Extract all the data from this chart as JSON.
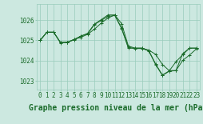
{
  "bg_color": "#cce8e0",
  "grid_color": "#99ccbb",
  "line_color": "#1a6b2a",
  "xlabel": "Graphe pression niveau de la mer (hPa)",
  "tick_fontsize": 5.5,
  "xlabel_fontsize": 7,
  "xlim": [
    -0.5,
    23.5
  ],
  "ylim": [
    1022.6,
    1026.8
  ],
  "yticks": [
    1023,
    1024,
    1025,
    1026
  ],
  "xticks": [
    0,
    1,
    2,
    3,
    4,
    5,
    6,
    7,
    8,
    9,
    10,
    11,
    12,
    13,
    14,
    15,
    16,
    17,
    18,
    19,
    20,
    21,
    22,
    23
  ],
  "series": {
    "s1_x": [
      0,
      1,
      2,
      3,
      4,
      5,
      6,
      7,
      8,
      9,
      10,
      11,
      12,
      13,
      14,
      15,
      16,
      17,
      18,
      19,
      20,
      21,
      22,
      23
    ],
    "s1_y": [
      1025.0,
      1025.4,
      1025.4,
      1024.9,
      1024.9,
      1025.05,
      1025.15,
      1025.3,
      1025.55,
      1025.85,
      1026.1,
      1026.25,
      1025.6,
      1024.65,
      1024.6,
      1024.6,
      1024.5,
      1023.85,
      1023.3,
      1023.5,
      1023.95,
      1024.3,
      1024.62,
      1024.62
    ],
    "s2_x": [
      0,
      1,
      2,
      3,
      4,
      5,
      6,
      7,
      8,
      9,
      10,
      11,
      12,
      13,
      14,
      15,
      16,
      17,
      18,
      19,
      20,
      21,
      22,
      23
    ],
    "s2_y": [
      1025.0,
      1025.4,
      1025.4,
      1024.9,
      1024.9,
      1025.05,
      1025.2,
      1025.35,
      1025.8,
      1026.02,
      1026.25,
      1026.25,
      1025.82,
      1024.72,
      1024.62,
      1024.62,
      1024.52,
      1024.32,
      1023.82,
      1023.52,
      1023.52,
      1024.35,
      1024.62,
      1024.62
    ],
    "s3_x": [
      0,
      1,
      2,
      3,
      4,
      5,
      6,
      7,
      8,
      9,
      10,
      11,
      12,
      13,
      14,
      15,
      16,
      17,
      18,
      19,
      20,
      21,
      22,
      23
    ],
    "s3_y": [
      1025.0,
      1025.4,
      1025.4,
      1024.88,
      1024.92,
      1025.02,
      1025.22,
      1025.32,
      1025.78,
      1025.98,
      1026.18,
      1026.22,
      1025.58,
      1024.62,
      1024.62,
      1024.62,
      1024.48,
      1023.82,
      1023.28,
      1023.48,
      1023.52,
      1024.02,
      1024.28,
      1024.58
    ]
  }
}
